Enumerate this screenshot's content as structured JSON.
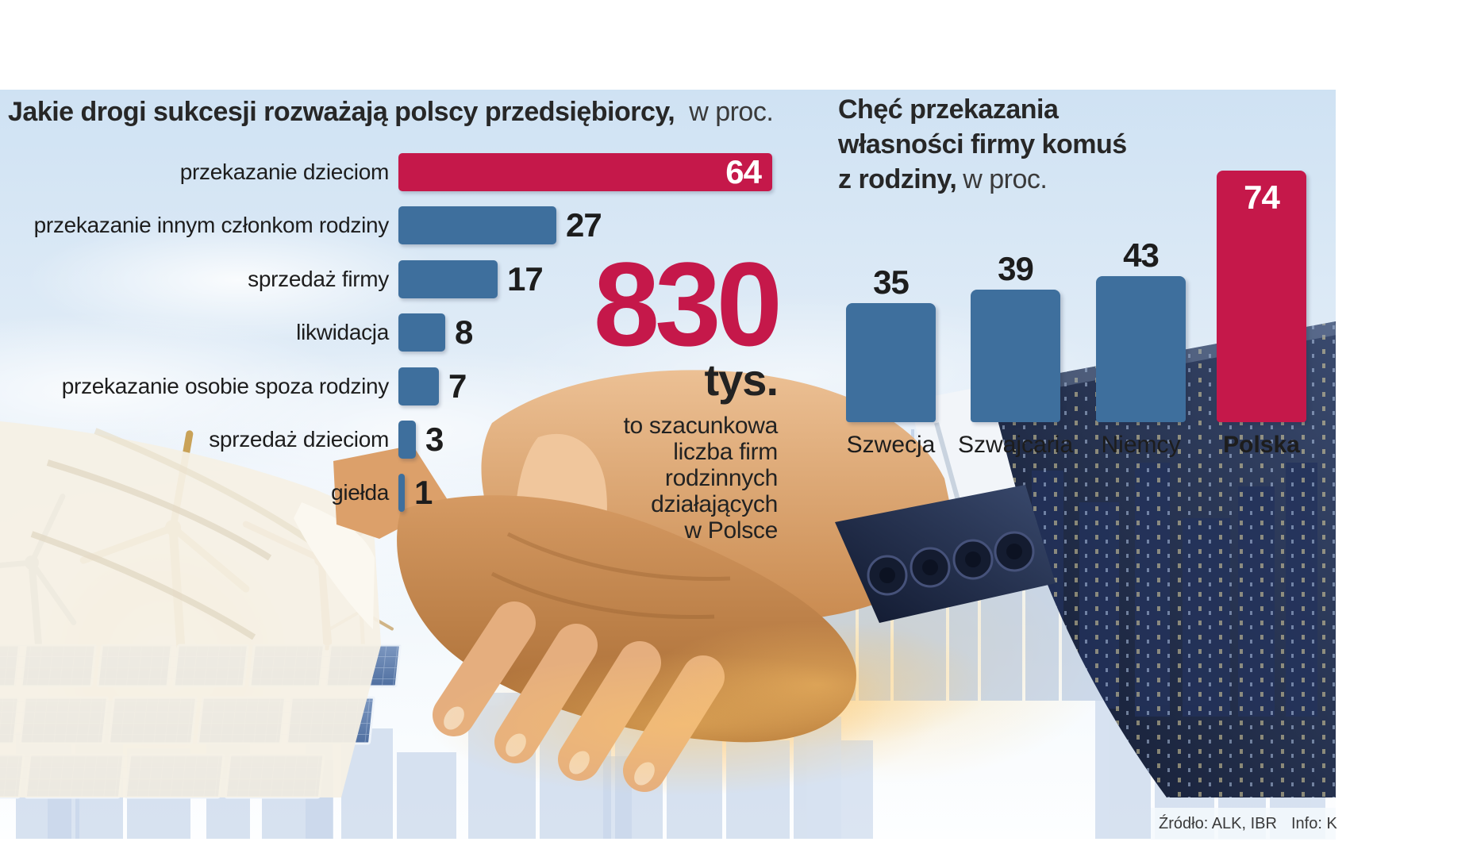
{
  "colors": {
    "accent_red": "#C5184A",
    "bar_blue": "#3E6F9D",
    "text_dark": "#1D1D1D",
    "sky": "#D3E4F3"
  },
  "left_chart": {
    "title_bold": "Jakie drogi sukcesji rozważają polscy przedsiębiorcy,",
    "title_unit": "w proc."
  },
  "right_chart": {
    "title_bold_l1": "Chęć przekazania",
    "title_bold_l2": "własności firmy komuś",
    "title_bold_l3": "z rodziny,",
    "title_unit": "w proc."
  },
  "big_number": {
    "value": "830",
    "unit": "tys.",
    "description_lines": [
      "to szacunkowa",
      "liczba firm",
      "rodzinnych",
      "działających",
      "w Polsce"
    ]
  },
  "source": {
    "label": "Źródło: ALK, IBR",
    "info": "Info: K"
  },
  "chart_data": [
    {
      "type": "bar",
      "orientation": "horizontal",
      "title": "Jakie drogi sukcesji rozważają polscy przedsiębiorcy, w proc.",
      "unit": "proc.",
      "categories": [
        "przekazanie dzieciom",
        "przekazanie innym członkom rodziny",
        "sprzedaż firmy",
        "likwidacja",
        "przekazanie osobie spoza rodziny",
        "sprzedaż dzieciom",
        "giełda"
      ],
      "values": [
        64,
        27,
        17,
        8,
        7,
        3,
        1
      ],
      "highlight_index": 0,
      "highlight_color": "#C5184A",
      "bar_color": "#3E6F9D",
      "value_labels_shown": true,
      "grid": false,
      "xlim": [
        0,
        64
      ]
    },
    {
      "type": "bar",
      "orientation": "vertical",
      "title": "Chęć przekazania własności firmy komuś z rodziny, w proc.",
      "unit": "proc.",
      "categories": [
        "Szwecja",
        "Szwajcaria",
        "Niemcy",
        "Polska"
      ],
      "values": [
        35,
        39,
        43,
        74
      ],
      "highlight_index": 3,
      "highlight_color": "#C5184A",
      "bar_color": "#3E6F9D",
      "value_labels_shown": true,
      "grid": false,
      "ylim": [
        0,
        74
      ]
    }
  ]
}
